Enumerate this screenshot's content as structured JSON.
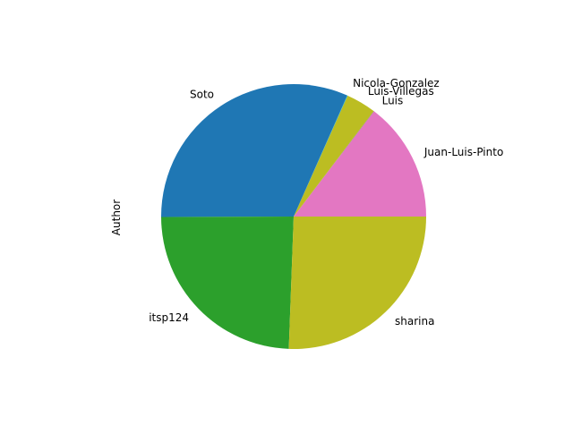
{
  "chart_data": {
    "type": "pie",
    "ylabel": "Author",
    "start_angle_deg": 0,
    "direction": "counterclockwise",
    "slices": [
      {
        "label": "Juan-Luis-Pinto",
        "value": 6,
        "color": "#e377c2"
      },
      {
        "label": "Luis",
        "value": 0.02,
        "color": "#7f7f7f"
      },
      {
        "label": "Luis-Villegas",
        "value": 1.5,
        "color": "#bcbd22"
      },
      {
        "label": "Nicola-Gonzalez",
        "value": 0.02,
        "color": "#17becf"
      },
      {
        "label": "Soto",
        "value": 13,
        "color": "#1f77b4"
      },
      {
        "label": "itsp124",
        "value": 10,
        "color": "#2ca02c"
      },
      {
        "label": "sharina",
        "value": 10.5,
        "color": "#bcbd22"
      }
    ]
  }
}
